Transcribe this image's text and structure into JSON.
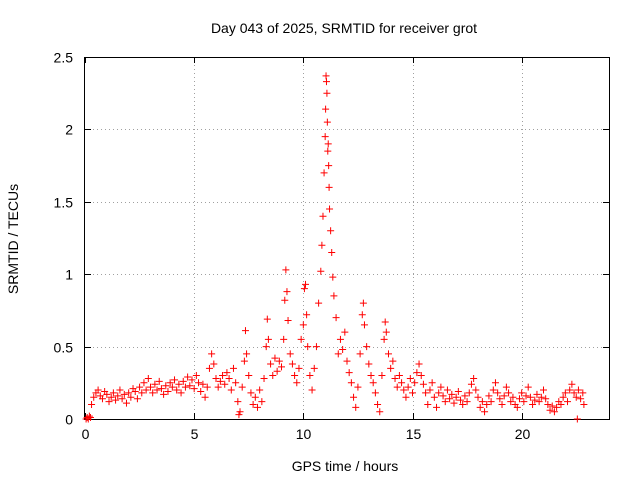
{
  "chart_data": {
    "type": "scatter",
    "title": "Day 043 of 2025, SRMTID for receiver grot",
    "xlabel": "GPS time / hours",
    "ylabel": "SRMTID / TECUs",
    "xlim": [
      0,
      24
    ],
    "ylim": [
      0,
      2.5
    ],
    "xticks": [
      "0",
      "5",
      "10",
      "15",
      "20"
    ],
    "yticks": [
      "0",
      "0.5",
      "1",
      "1.5",
      "2",
      "2.5"
    ],
    "grid": true,
    "marker": "plus",
    "color": "#ff0000",
    "series": [
      {
        "name": "SRMTID",
        "points": [
          [
            0.05,
            0.0
          ],
          [
            0.1,
            0.01
          ],
          [
            0.15,
            0.0
          ],
          [
            0.2,
            0.02
          ],
          [
            0.25,
            0.01
          ],
          [
            0.3,
            0.1
          ],
          [
            0.4,
            0.15
          ],
          [
            0.5,
            0.18
          ],
          [
            0.6,
            0.2
          ],
          [
            0.7,
            0.16
          ],
          [
            0.8,
            0.14
          ],
          [
            0.9,
            0.19
          ],
          [
            1.0,
            0.17
          ],
          [
            1.1,
            0.12
          ],
          [
            1.2,
            0.15
          ],
          [
            1.3,
            0.18
          ],
          [
            1.4,
            0.13
          ],
          [
            1.5,
            0.16
          ],
          [
            1.6,
            0.2
          ],
          [
            1.7,
            0.14
          ],
          [
            1.8,
            0.17
          ],
          [
            1.9,
            0.11
          ],
          [
            2.0,
            0.18
          ],
          [
            2.1,
            0.15
          ],
          [
            2.2,
            0.21
          ],
          [
            2.3,
            0.19
          ],
          [
            2.4,
            0.14
          ],
          [
            2.5,
            0.22
          ],
          [
            2.6,
            0.18
          ],
          [
            2.7,
            0.25
          ],
          [
            2.8,
            0.2
          ],
          [
            2.9,
            0.28
          ],
          [
            3.0,
            0.22
          ],
          [
            3.1,
            0.18
          ],
          [
            3.2,
            0.24
          ],
          [
            3.3,
            0.2
          ],
          [
            3.4,
            0.26
          ],
          [
            3.5,
            0.21
          ],
          [
            3.6,
            0.17
          ],
          [
            3.7,
            0.23
          ],
          [
            3.8,
            0.19
          ],
          [
            3.9,
            0.25
          ],
          [
            4.0,
            0.22
          ],
          [
            4.1,
            0.27
          ],
          [
            4.2,
            0.2
          ],
          [
            4.3,
            0.24
          ],
          [
            4.4,
            0.18
          ],
          [
            4.5,
            0.26
          ],
          [
            4.6,
            0.22
          ],
          [
            4.7,
            0.29
          ],
          [
            4.8,
            0.23
          ],
          [
            4.9,
            0.27
          ],
          [
            5.0,
            0.21
          ],
          [
            5.1,
            0.3
          ],
          [
            5.2,
            0.25
          ],
          [
            5.3,
            0.19
          ],
          [
            5.4,
            0.24
          ],
          [
            5.5,
            0.15
          ],
          [
            5.6,
            0.22
          ],
          [
            5.7,
            0.35
          ],
          [
            5.8,
            0.45
          ],
          [
            5.9,
            0.38
          ],
          [
            6.0,
            0.28
          ],
          [
            6.1,
            0.22
          ],
          [
            6.2,
            0.26
          ],
          [
            6.3,
            0.3
          ],
          [
            6.4,
            0.24
          ],
          [
            6.5,
            0.32
          ],
          [
            6.6,
            0.28
          ],
          [
            6.7,
            0.2
          ],
          [
            6.8,
            0.35
          ],
          [
            6.9,
            0.25
          ],
          [
            7.0,
            0.12
          ],
          [
            7.05,
            0.03
          ],
          [
            7.1,
            0.05
          ],
          [
            7.2,
            0.22
          ],
          [
            7.3,
            0.4
          ],
          [
            7.35,
            0.61
          ],
          [
            7.4,
            0.45
          ],
          [
            7.5,
            0.3
          ],
          [
            7.6,
            0.18
          ],
          [
            7.7,
            0.1
          ],
          [
            7.8,
            0.15
          ],
          [
            7.9,
            0.08
          ],
          [
            8.0,
            0.2
          ],
          [
            8.1,
            0.12
          ],
          [
            8.2,
            0.28
          ],
          [
            8.3,
            0.5
          ],
          [
            8.35,
            0.69
          ],
          [
            8.4,
            0.55
          ],
          [
            8.5,
            0.38
          ],
          [
            8.6,
            0.3
          ],
          [
            8.7,
            0.42
          ],
          [
            8.8,
            0.33
          ],
          [
            8.9,
            0.4
          ],
          [
            9.0,
            0.36
          ],
          [
            9.1,
            0.55
          ],
          [
            9.15,
            0.82
          ],
          [
            9.2,
            1.03
          ],
          [
            9.25,
            0.88
          ],
          [
            9.3,
            0.68
          ],
          [
            9.4,
            0.45
          ],
          [
            9.5,
            0.38
          ],
          [
            9.6,
            0.3
          ],
          [
            9.7,
            0.25
          ],
          [
            9.8,
            0.35
          ],
          [
            9.9,
            0.55
          ],
          [
            10.0,
            0.65
          ],
          [
            10.05,
            0.9
          ],
          [
            10.1,
            0.93
          ],
          [
            10.15,
            0.72
          ],
          [
            10.2,
            0.5
          ],
          [
            10.3,
            0.3
          ],
          [
            10.4,
            0.2
          ],
          [
            10.5,
            0.35
          ],
          [
            10.6,
            0.5
          ],
          [
            10.7,
            0.8
          ],
          [
            10.8,
            1.02
          ],
          [
            10.85,
            1.2
          ],
          [
            10.9,
            1.4
          ],
          [
            10.95,
            1.7
          ],
          [
            11.0,
            1.95
          ],
          [
            11.02,
            2.14
          ],
          [
            11.04,
            2.37
          ],
          [
            11.06,
            2.33
          ],
          [
            11.08,
            2.25
          ],
          [
            11.1,
            2.05
          ],
          [
            11.12,
            1.85
          ],
          [
            11.14,
            1.9
          ],
          [
            11.16,
            1.75
          ],
          [
            11.18,
            1.6
          ],
          [
            11.2,
            1.45
          ],
          [
            11.25,
            1.3
          ],
          [
            11.3,
            1.15
          ],
          [
            11.35,
            0.98
          ],
          [
            11.4,
            0.85
          ],
          [
            11.5,
            0.7
          ],
          [
            11.6,
            0.45
          ],
          [
            11.7,
            0.55
          ],
          [
            11.8,
            0.48
          ],
          [
            11.9,
            0.6
          ],
          [
            12.0,
            0.4
          ],
          [
            12.1,
            0.32
          ],
          [
            12.2,
            0.25
          ],
          [
            12.3,
            0.15
          ],
          [
            12.4,
            0.08
          ],
          [
            12.5,
            0.22
          ],
          [
            12.6,
            0.45
          ],
          [
            12.7,
            0.72
          ],
          [
            12.75,
            0.8
          ],
          [
            12.8,
            0.65
          ],
          [
            12.9,
            0.5
          ],
          [
            13.0,
            0.38
          ],
          [
            13.1,
            0.3
          ],
          [
            13.2,
            0.25
          ],
          [
            13.3,
            0.18
          ],
          [
            13.4,
            0.1
          ],
          [
            13.5,
            0.05
          ],
          [
            13.6,
            0.3
          ],
          [
            13.7,
            0.55
          ],
          [
            13.75,
            0.67
          ],
          [
            13.8,
            0.6
          ],
          [
            13.9,
            0.45
          ],
          [
            14.0,
            0.35
          ],
          [
            14.1,
            0.4
          ],
          [
            14.2,
            0.28
          ],
          [
            14.3,
            0.22
          ],
          [
            14.4,
            0.3
          ],
          [
            14.5,
            0.25
          ],
          [
            14.6,
            0.2
          ],
          [
            14.7,
            0.15
          ],
          [
            14.8,
            0.22
          ],
          [
            14.9,
            0.28
          ],
          [
            15.0,
            0.18
          ],
          [
            15.1,
            0.25
          ],
          [
            15.2,
            0.32
          ],
          [
            15.3,
            0.38
          ],
          [
            15.4,
            0.3
          ],
          [
            15.5,
            0.24
          ],
          [
            15.6,
            0.18
          ],
          [
            15.7,
            0.1
          ],
          [
            15.8,
            0.2
          ],
          [
            15.9,
            0.25
          ],
          [
            16.0,
            0.15
          ],
          [
            16.1,
            0.08
          ],
          [
            16.2,
            0.18
          ],
          [
            16.3,
            0.22
          ],
          [
            16.4,
            0.16
          ],
          [
            16.5,
            0.12
          ],
          [
            16.6,
            0.2
          ],
          [
            16.7,
            0.14
          ],
          [
            16.8,
            0.17
          ],
          [
            16.9,
            0.11
          ],
          [
            17.0,
            0.15
          ],
          [
            17.1,
            0.19
          ],
          [
            17.2,
            0.13
          ],
          [
            17.3,
            0.1
          ],
          [
            17.4,
            0.16
          ],
          [
            17.5,
            0.12
          ],
          [
            17.6,
            0.18
          ],
          [
            17.7,
            0.24
          ],
          [
            17.8,
            0.28
          ],
          [
            17.9,
            0.2
          ],
          [
            18.0,
            0.15
          ],
          [
            18.1,
            0.08
          ],
          [
            18.2,
            0.12
          ],
          [
            18.3,
            0.05
          ],
          [
            18.4,
            0.1
          ],
          [
            18.5,
            0.16
          ],
          [
            18.6,
            0.12
          ],
          [
            18.7,
            0.2
          ],
          [
            18.8,
            0.25
          ],
          [
            18.9,
            0.18
          ],
          [
            19.0,
            0.14
          ],
          [
            19.1,
            0.1
          ],
          [
            19.2,
            0.16
          ],
          [
            19.3,
            0.22
          ],
          [
            19.4,
            0.18
          ],
          [
            19.5,
            0.12
          ],
          [
            19.6,
            0.15
          ],
          [
            19.7,
            0.1
          ],
          [
            19.8,
            0.08
          ],
          [
            19.9,
            0.14
          ],
          [
            20.0,
            0.18
          ],
          [
            20.1,
            0.12
          ],
          [
            20.2,
            0.16
          ],
          [
            20.3,
            0.22
          ],
          [
            20.4,
            0.15
          ],
          [
            20.5,
            0.1
          ],
          [
            20.6,
            0.13
          ],
          [
            20.7,
            0.17
          ],
          [
            20.8,
            0.12
          ],
          [
            20.9,
            0.15
          ],
          [
            21.0,
            0.2
          ],
          [
            21.1,
            0.14
          ],
          [
            21.2,
            0.1
          ],
          [
            21.3,
            0.06
          ],
          [
            21.4,
            0.09
          ],
          [
            21.5,
            0.05
          ],
          [
            21.6,
            0.08
          ],
          [
            21.7,
            0.12
          ],
          [
            21.8,
            0.1
          ],
          [
            21.9,
            0.15
          ],
          [
            22.0,
            0.18
          ],
          [
            22.1,
            0.12
          ],
          [
            22.2,
            0.2
          ],
          [
            22.3,
            0.24
          ],
          [
            22.4,
            0.18
          ],
          [
            22.5,
            0.15
          ],
          [
            22.55,
            0.0
          ],
          [
            22.6,
            0.2
          ],
          [
            22.7,
            0.14
          ],
          [
            22.8,
            0.18
          ],
          [
            22.85,
            0.1
          ]
        ]
      }
    ]
  }
}
